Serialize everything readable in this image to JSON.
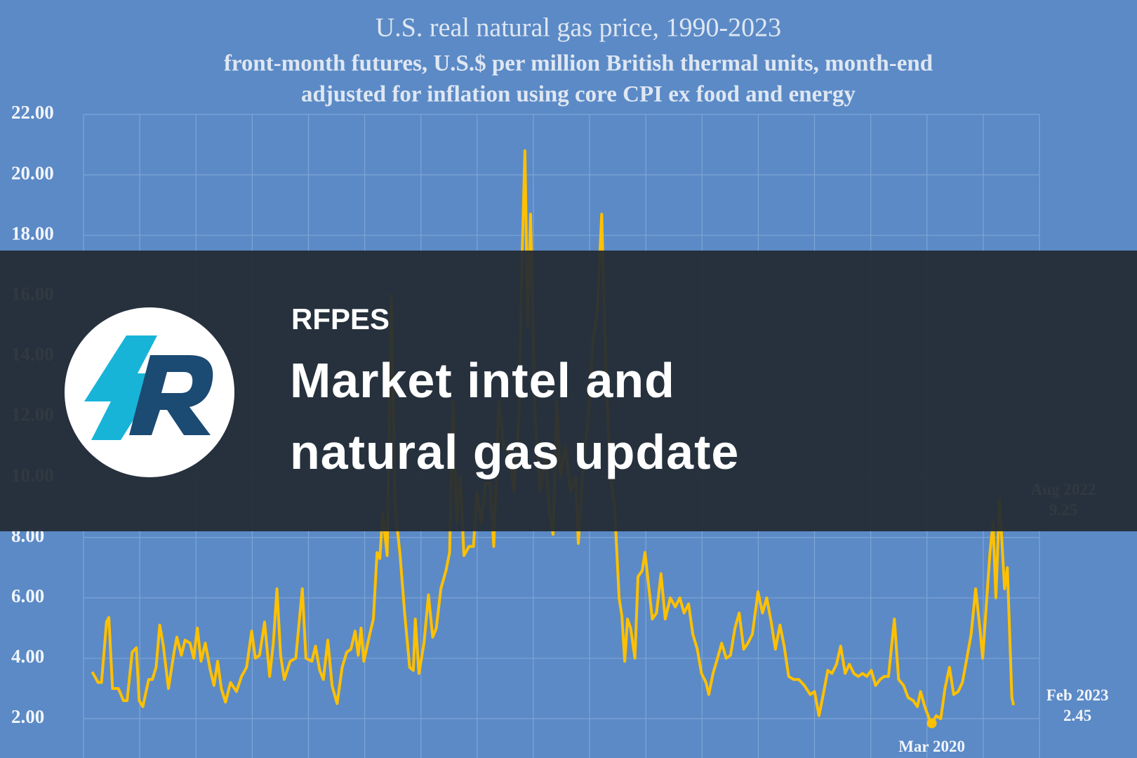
{
  "chart_data": {
    "type": "line",
    "title": "U.S. real natural gas price, 1990-2023",
    "subtitle": [
      "front-month futures, U.S.$ per million British thermal units, month-end",
      "adjusted for inflation using core CPI ex food and energy"
    ],
    "color": "#ffc000",
    "grid": true,
    "xlim": [
      1990,
      2024
    ],
    "xticks": [
      1990,
      1992,
      1994,
      1996,
      1998,
      2000,
      2002,
      2004,
      2006,
      2008,
      2010,
      2012,
      2014,
      2016,
      2018,
      2020,
      2022,
      2024
    ],
    "ylim": [
      0.7,
      22
    ],
    "yticks": [
      {
        "value": 2,
        "label": "2.00"
      },
      {
        "value": 4,
        "label": "4.00"
      },
      {
        "value": 6,
        "label": "6.00"
      },
      {
        "value": 8,
        "label": "8.00"
      },
      {
        "value": 10,
        "label": "10.00"
      },
      {
        "value": 12,
        "label": "12.00"
      },
      {
        "value": 14,
        "label": "14.00"
      },
      {
        "value": 16,
        "label": "16.00"
      },
      {
        "value": 18,
        "label": "18.00"
      },
      {
        "value": 20,
        "label": "20.00"
      },
      {
        "value": 22,
        "label": "22.00"
      }
    ],
    "x": [
      1990.31,
      1990.52,
      1990.64,
      1990.82,
      1990.9,
      1991.03,
      1991.24,
      1991.42,
      1991.55,
      1991.73,
      1991.88,
      1991.98,
      1992.11,
      1992.32,
      1992.45,
      1992.58,
      1992.71,
      1992.84,
      1993.02,
      1993.22,
      1993.32,
      1993.48,
      1993.61,
      1993.79,
      1993.92,
      1994.05,
      1994.18,
      1994.33,
      1994.51,
      1994.64,
      1994.77,
      1994.9,
      1995.05,
      1995.23,
      1995.44,
      1995.62,
      1995.8,
      1995.98,
      1996.11,
      1996.26,
      1996.44,
      1996.62,
      1996.75,
      1996.88,
      1997.01,
      1997.14,
      1997.35,
      1997.55,
      1997.78,
      1997.91,
      1998.12,
      1998.25,
      1998.4,
      1998.53,
      1998.69,
      1998.84,
      1999.02,
      1999.2,
      1999.36,
      1999.51,
      1999.66,
      1999.77,
      1999.87,
      1999.97,
      2000.18,
      2000.31,
      2000.44,
      2000.54,
      2000.64,
      2000.8,
      2000.95,
      2001.08,
      2001.26,
      2001.42,
      2001.6,
      2001.73,
      2001.8,
      2001.93,
      2002.11,
      2002.27,
      2002.42,
      2002.55,
      2002.71,
      2002.89,
      2003.02,
      2003.14,
      2003.27,
      2003.4,
      2003.53,
      2003.71,
      2003.87,
      2003.99,
      2004.15,
      2004.3,
      2004.46,
      2004.59,
      2004.77,
      2004.95,
      2005.13,
      2005.31,
      2005.49,
      2005.59,
      2005.7,
      2005.8,
      2005.9,
      2006.06,
      2006.24,
      2006.42,
      2006.55,
      2006.7,
      2006.83,
      2006.96,
      2007.14,
      2007.32,
      2007.5,
      2007.6,
      2007.78,
      2007.96,
      2008.12,
      2008.27,
      2008.43,
      2008.58,
      2008.74,
      2008.89,
      2009.05,
      2009.15,
      2009.25,
      2009.35,
      2009.46,
      2009.61,
      2009.72,
      2009.87,
      2009.97,
      2010.1,
      2010.23,
      2010.38,
      2010.54,
      2010.69,
      2010.87,
      2011.05,
      2011.21,
      2011.36,
      2011.52,
      2011.67,
      2011.83,
      2011.98,
      2012.14,
      2012.24,
      2012.39,
      2012.55,
      2012.7,
      2012.86,
      2013.01,
      2013.17,
      2013.32,
      2013.48,
      2013.63,
      2013.79,
      2013.99,
      2014.15,
      2014.3,
      2014.46,
      2014.61,
      2014.77,
      2014.92,
      2015.08,
      2015.26,
      2015.44,
      2015.64,
      2015.85,
      2016.0,
      2016.16,
      2016.31,
      2016.47,
      2016.62,
      2016.78,
      2016.93,
      2017.09,
      2017.24,
      2017.4,
      2017.55,
      2017.71,
      2017.86,
      2018.02,
      2018.17,
      2018.33,
      2018.48,
      2018.63,
      2018.84,
      2018.99,
      2019.17,
      2019.33,
      2019.51,
      2019.66,
      2019.77,
      2019.92,
      2020.08,
      2020.17,
      2020.33,
      2020.49,
      2020.64,
      2020.8,
      2020.95,
      2021.11,
      2021.26,
      2021.42,
      2021.57,
      2021.73,
      2021.88,
      2021.98,
      2022.09,
      2022.24,
      2022.35,
      2022.45,
      2022.58,
      2022.76,
      2022.86,
      2023.02,
      2023.08
    ],
    "values": [
      3.55,
      3.2,
      3.2,
      5.2,
      5.35,
      3.0,
      3.0,
      2.6,
      2.6,
      4.2,
      4.35,
      2.6,
      2.4,
      3.3,
      3.3,
      3.7,
      5.1,
      4.4,
      3.0,
      4.2,
      4.7,
      4.1,
      4.6,
      4.5,
      4.0,
      5.0,
      3.9,
      4.5,
      3.6,
      3.1,
      3.9,
      3.0,
      2.55,
      3.2,
      2.9,
      3.4,
      3.7,
      4.9,
      4.0,
      4.1,
      5.2,
      3.4,
      4.5,
      6.3,
      4.1,
      3.3,
      3.9,
      4.0,
      6.3,
      4.0,
      3.9,
      4.4,
      3.6,
      3.3,
      4.6,
      3.1,
      2.5,
      3.7,
      4.2,
      4.3,
      4.9,
      4.1,
      5.0,
      3.9,
      4.8,
      5.3,
      7.5,
      7.3,
      8.8,
      7.4,
      16.0,
      9.0,
      7.4,
      5.5,
      3.7,
      3.6,
      5.3,
      3.5,
      4.5,
      6.1,
      4.7,
      5.0,
      6.3,
      6.9,
      7.5,
      12.5,
      8.5,
      10.0,
      7.4,
      7.7,
      7.7,
      9.5,
      8.5,
      9.8,
      9.8,
      7.7,
      12.5,
      11.0,
      10.8,
      9.5,
      12.0,
      17.0,
      20.8,
      15.0,
      18.7,
      12.0,
      9.5,
      10.8,
      9.0,
      8.1,
      12.5,
      10.0,
      11.0,
      9.5,
      10.0,
      7.8,
      10.5,
      12.0,
      14.5,
      15.5,
      18.7,
      13.5,
      10.0,
      9.0,
      6.0,
      5.4,
      3.9,
      5.3,
      5.0,
      4.0,
      6.7,
      6.9,
      7.5,
      6.4,
      5.3,
      5.5,
      6.8,
      5.3,
      6.0,
      5.7,
      6.0,
      5.5,
      5.8,
      4.8,
      4.3,
      3.5,
      3.2,
      2.8,
      3.5,
      4.0,
      4.5,
      4.0,
      4.1,
      5.0,
      5.5,
      4.3,
      4.5,
      4.8,
      6.2,
      5.5,
      6.0,
      5.2,
      4.3,
      5.1,
      4.4,
      3.4,
      3.3,
      3.3,
      3.1,
      2.8,
      2.9,
      2.1,
      2.8,
      3.6,
      3.5,
      3.8,
      4.4,
      3.5,
      3.8,
      3.5,
      3.4,
      3.5,
      3.4,
      3.6,
      3.1,
      3.3,
      3.4,
      3.4,
      5.3,
      3.3,
      3.1,
      2.7,
      2.6,
      2.4,
      2.9,
      2.4,
      2.0,
      1.85,
      2.1,
      2.0,
      3.0,
      3.7,
      2.8,
      2.9,
      3.2,
      4.0,
      4.8,
      6.3,
      5.0,
      4.0,
      5.5,
      7.5,
      8.5,
      6.0,
      9.25,
      6.3,
      7.0,
      2.7,
      2.45
    ],
    "annotations": [
      {
        "date": "Aug 2022",
        "x": 2022.58,
        "value": 9.25,
        "label": "9.25"
      },
      {
        "date": "Feb 2023",
        "x": 2023.08,
        "value": 2.45,
        "label": "2.45"
      },
      {
        "date": "Mar 2020",
        "x": 2020.17,
        "value": 1.85
      }
    ]
  },
  "banner": {
    "brand": "RFPES",
    "headline": [
      "Market intel and",
      "natural gas update"
    ]
  }
}
